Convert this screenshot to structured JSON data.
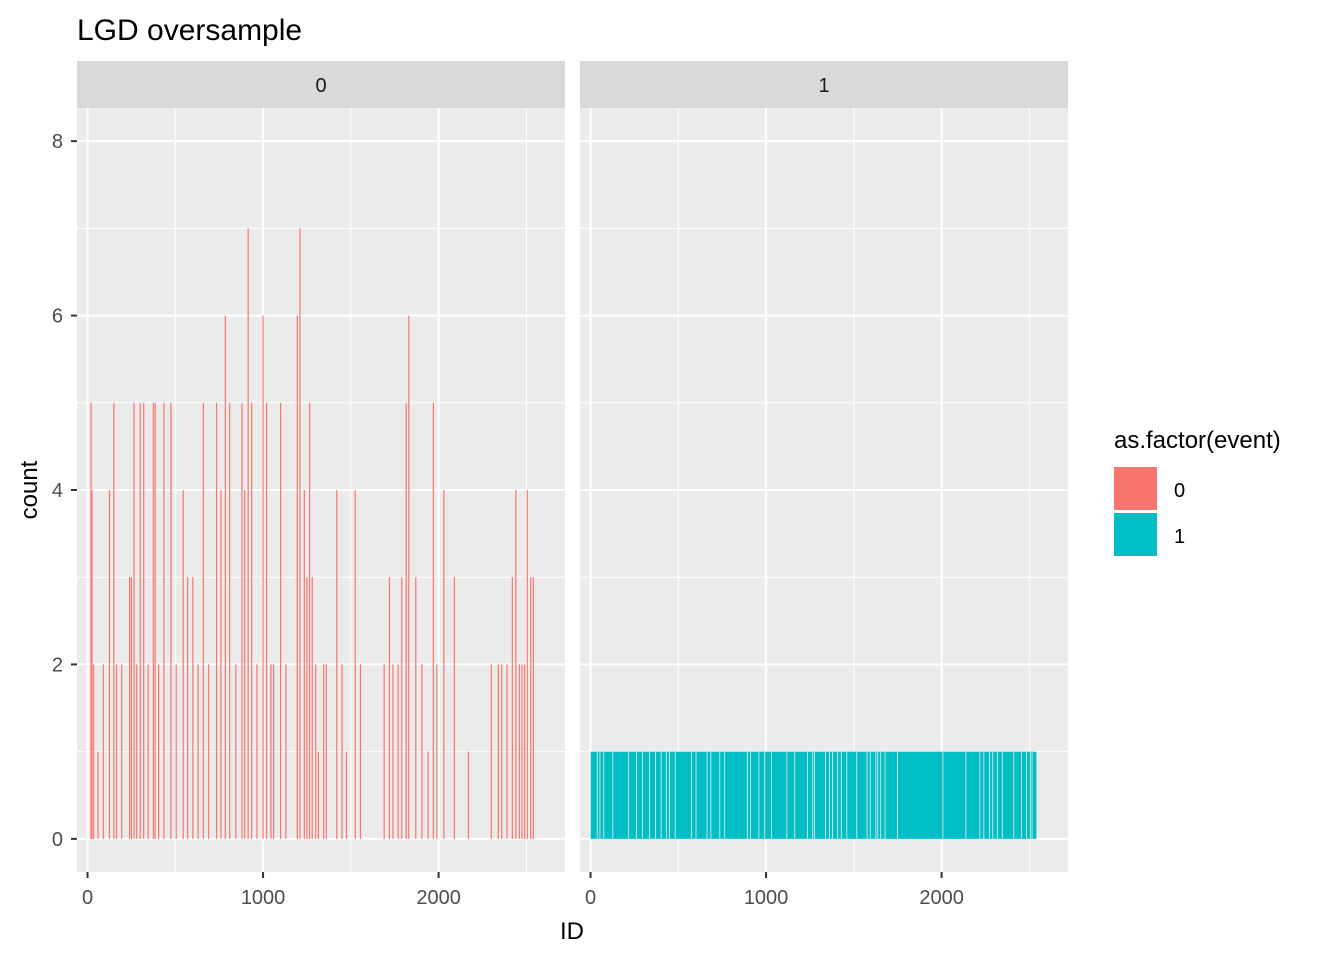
{
  "chart_data": {
    "type": "bar",
    "title": "LGD oversample",
    "xlabel": "ID",
    "ylabel": "count",
    "xlim": [
      -60,
      2720
    ],
    "ylim": [
      -0.38,
      8.38
    ],
    "x_ticks": [
      0,
      1000,
      2000
    ],
    "x_tick_labels": [
      "0",
      "1000",
      "2000"
    ],
    "y_ticks": [
      0,
      2,
      4,
      6,
      8
    ],
    "y_tick_labels": [
      "0",
      "2",
      "4",
      "6",
      "8"
    ],
    "grid": true,
    "legend": {
      "title": "as.factor(event)",
      "position": "right",
      "entries": [
        {
          "label": "0",
          "color": "#F8766D"
        },
        {
          "label": "1",
          "color": "#00BFC4"
        }
      ]
    },
    "facets": [
      {
        "label": "0",
        "series_name": "0",
        "color": "#F8766D",
        "x": [
          20,
          25,
          35,
          60,
          90,
          125,
          150,
          165,
          195,
          240,
          250,
          265,
          280,
          300,
          320,
          345,
          375,
          385,
          405,
          435,
          475,
          505,
          545,
          570,
          600,
          630,
          660,
          690,
          735,
          760,
          785,
          810,
          845,
          880,
          895,
          915,
          935,
          965,
          1000,
          1020,
          1045,
          1060,
          1100,
          1130,
          1195,
          1210,
          1235,
          1250,
          1265,
          1280,
          1300,
          1315,
          1345,
          1360,
          1420,
          1450,
          1475,
          1525,
          1555,
          1690,
          1720,
          1740,
          1770,
          1790,
          1815,
          1830,
          1870,
          1905,
          1940,
          1970,
          1990,
          2030,
          2090,
          2170,
          2300,
          2340,
          2360,
          2390,
          2420,
          2440,
          2460,
          2475,
          2490,
          2505,
          2525,
          2540
        ],
        "values": [
          5,
          4,
          2,
          1,
          2,
          4,
          5,
          2,
          2,
          3,
          3,
          5,
          2,
          5,
          5,
          2,
          5,
          5,
          2,
          5,
          5,
          2,
          4,
          3,
          3,
          2,
          5,
          2,
          5,
          4,
          6,
          5,
          2,
          5,
          4,
          7,
          5,
          2,
          6,
          5,
          2,
          2,
          5,
          2,
          6,
          7,
          4,
          3,
          5,
          3,
          2,
          1,
          2,
          2,
          4,
          2,
          1,
          4,
          2,
          2,
          3,
          2,
          2,
          3,
          5,
          6,
          3,
          2,
          1,
          5,
          2,
          4,
          3,
          1,
          2,
          2,
          2,
          2,
          3,
          4,
          2,
          2,
          2,
          4,
          3,
          3
        ]
      },
      {
        "label": "1",
        "series_name": "1",
        "color": "#00BFC4",
        "x_range": [
          1,
          2540
        ],
        "value": 1
      }
    ]
  }
}
